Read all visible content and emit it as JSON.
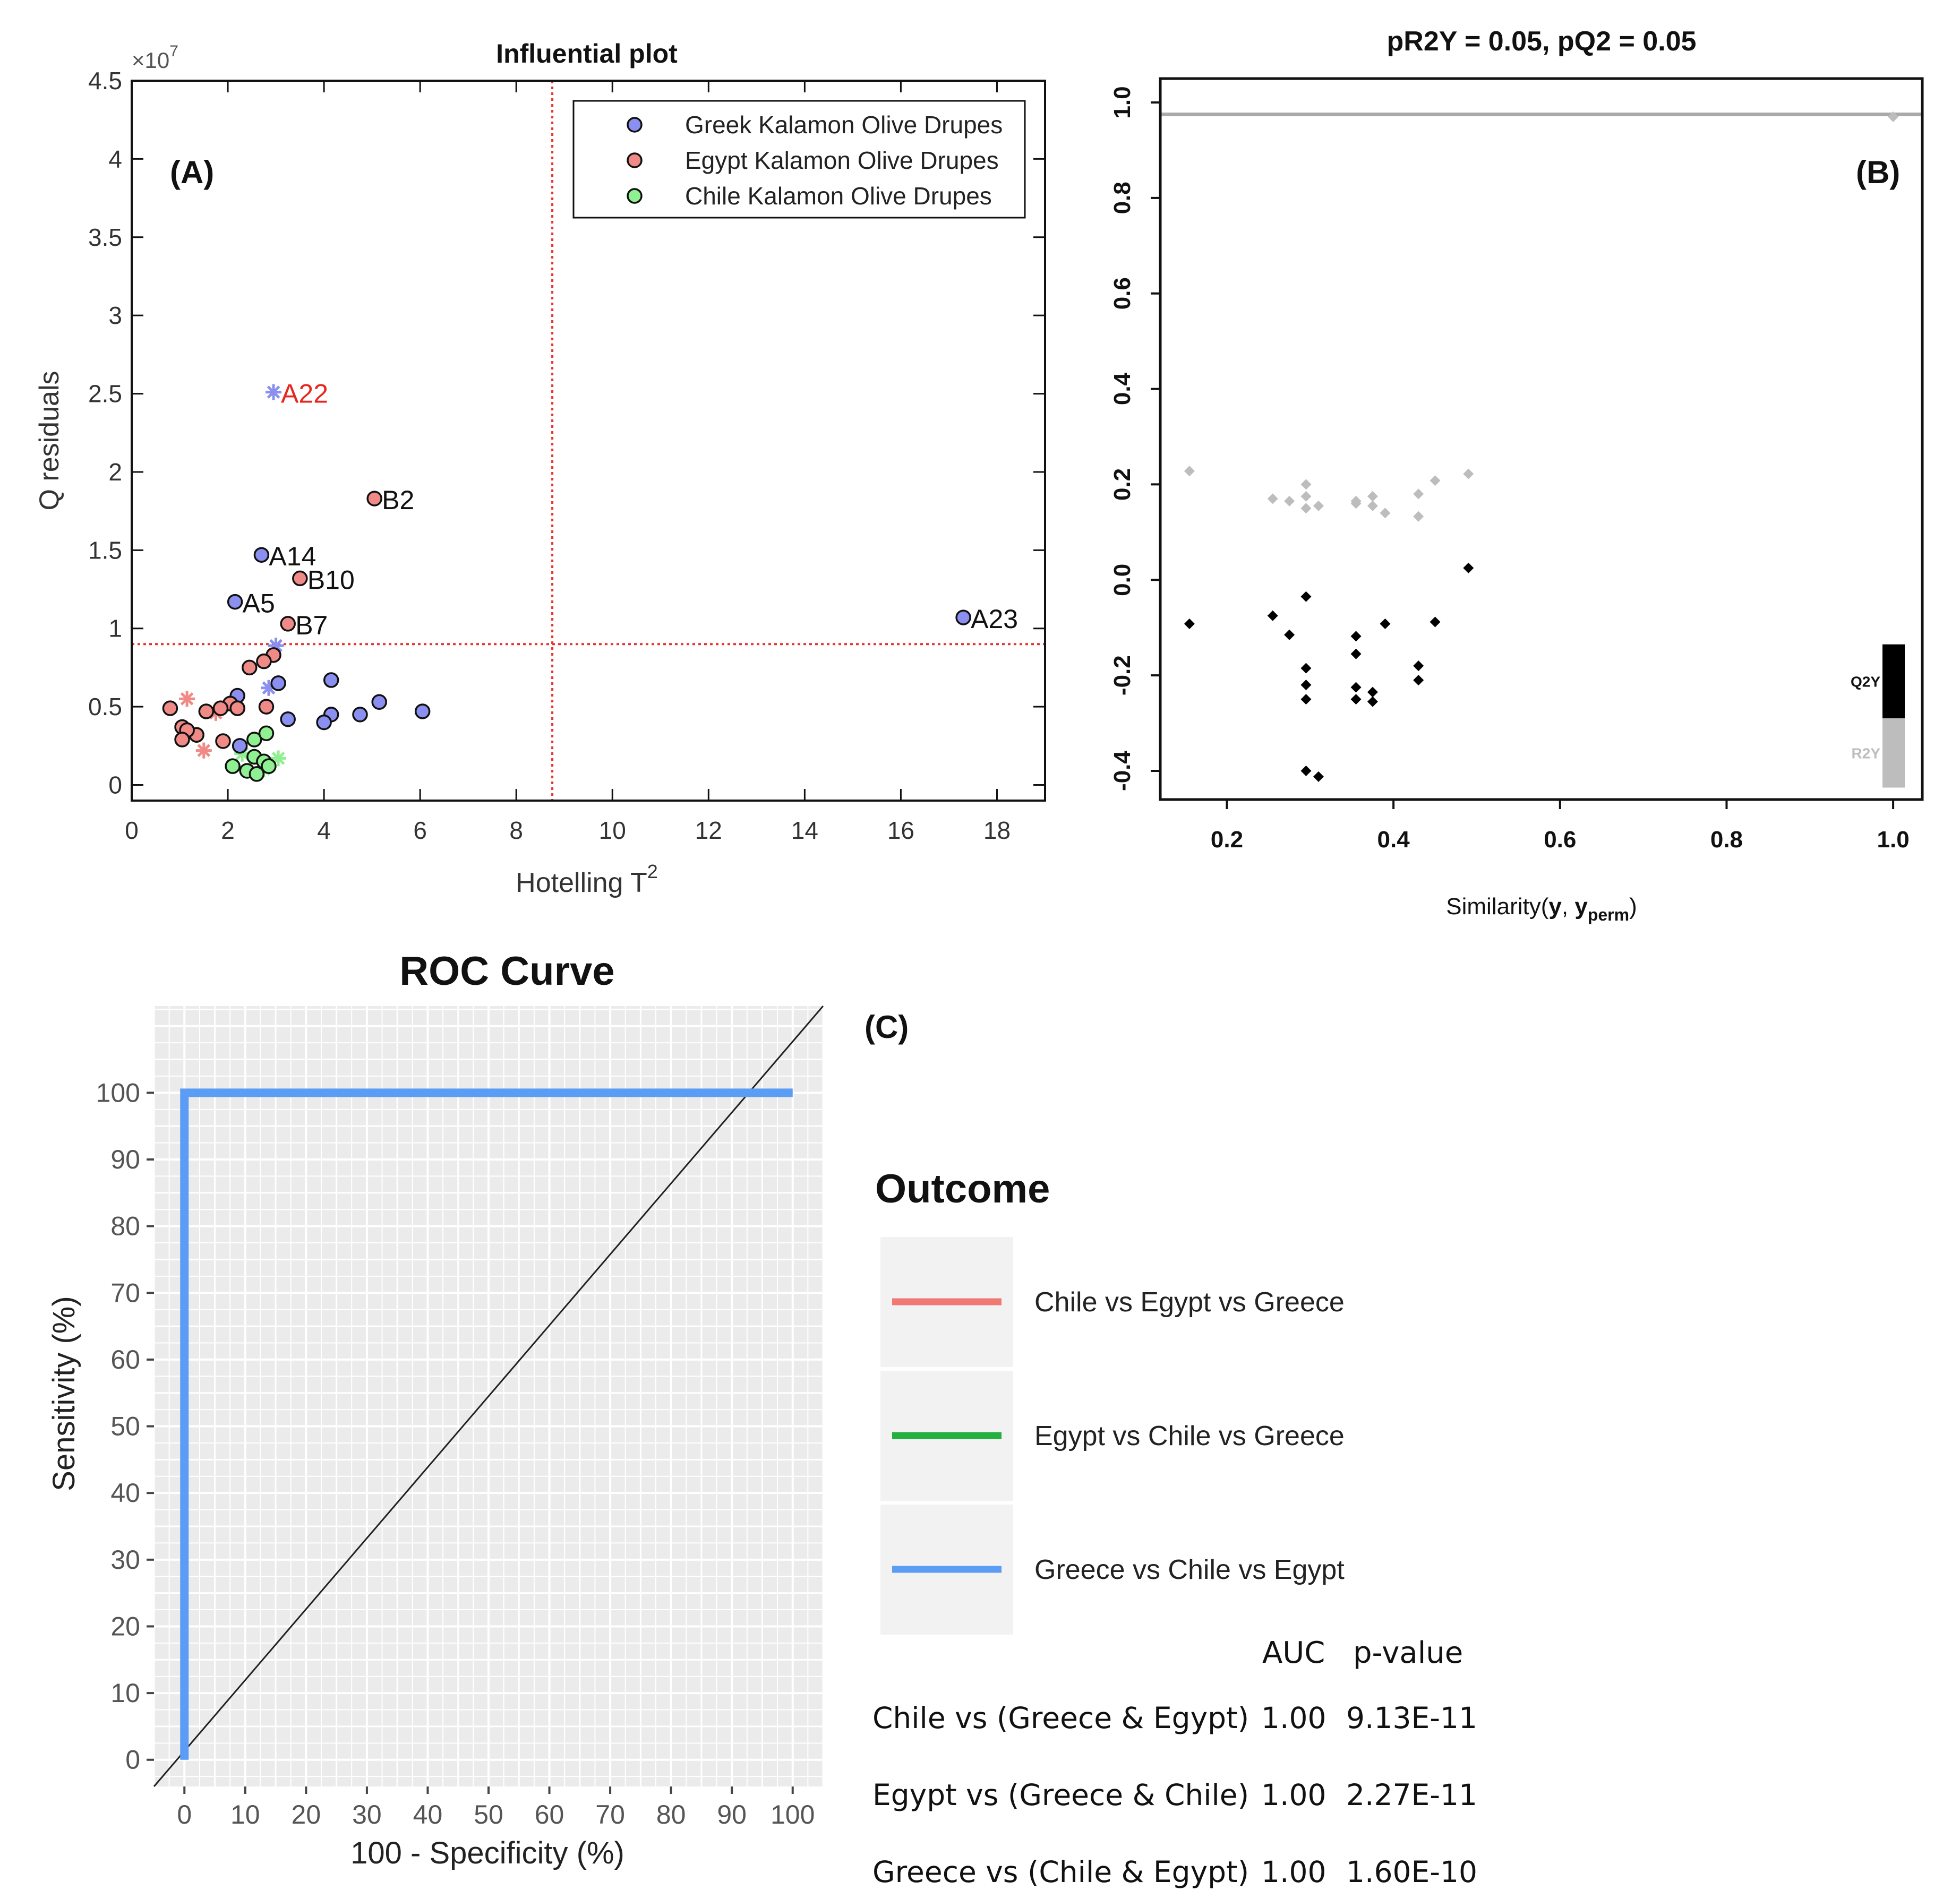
{
  "chart_data": [
    {
      "type": "scatter",
      "panel_label": "(A)",
      "title": "Influential plot",
      "xlabel": "Hotelling T",
      "xlabel_sup": "2",
      "ylabel": "Q residuals",
      "y_multiplier": "×10",
      "y_multiplier_exp": "7",
      "xlim": [
        0,
        19
      ],
      "ylim": [
        -0.1,
        4.5
      ],
      "xticks": [
        0,
        2,
        4,
        6,
        8,
        10,
        12,
        14,
        16,
        18
      ],
      "yticks": [
        0,
        0.5,
        1,
        1.5,
        2,
        2.5,
        3,
        3.5,
        4,
        4.5
      ],
      "ytick_labels": [
        "0",
        "0.5",
        "1",
        "1.5",
        "2",
        "2.5",
        "3",
        "3.5",
        "4",
        "4.5"
      ],
      "thresholds": {
        "x": 8.75,
        "y": 0.9,
        "color": "#e8322d"
      },
      "legend": [
        {
          "name": "Greek Kalamon Olive Drupes",
          "color": "#8a8ff0"
        },
        {
          "name": "Egypt Kalamon Olive Drupes",
          "color": "#f08a86"
        },
        {
          "name": "Chile Kalamon Olive Drupes",
          "color": "#8ef090"
        }
      ],
      "series": [
        {
          "name": "Greek Kalamon Olive Drupes",
          "color": "#8a8ff0",
          "points": [
            [
              2.7,
              1.47
            ],
            [
              2.15,
              1.17
            ],
            [
              17.3,
              1.07
            ],
            [
              3.05,
              0.65
            ],
            [
              4.15,
              0.67
            ],
            [
              2.2,
              0.57
            ],
            [
              5.15,
              0.53
            ],
            [
              6.05,
              0.47
            ],
            [
              4.75,
              0.45
            ],
            [
              4.15,
              0.45
            ],
            [
              4.0,
              0.4
            ],
            [
              3.25,
              0.42
            ],
            [
              2.2,
              0.49
            ],
            [
              2.25,
              0.25
            ]
          ]
        },
        {
          "name": "Egypt Kalamon Olive Drupes",
          "color": "#f08a86",
          "points": [
            [
              5.05,
              1.83
            ],
            [
              3.5,
              1.32
            ],
            [
              3.25,
              1.03
            ],
            [
              2.95,
              0.83
            ],
            [
              2.75,
              0.79
            ],
            [
              2.45,
              0.75
            ],
            [
              2.05,
              0.52
            ],
            [
              1.85,
              0.49
            ],
            [
              0.8,
              0.49
            ],
            [
              2.2,
              0.49
            ],
            [
              1.55,
              0.47
            ],
            [
              2.8,
              0.5
            ],
            [
              1.05,
              0.37
            ],
            [
              1.35,
              0.32
            ],
            [
              1.15,
              0.35
            ],
            [
              1.05,
              0.29
            ],
            [
              1.9,
              0.28
            ]
          ]
        },
        {
          "name": "Chile Kalamon Olive Drupes",
          "color": "#8ef090",
          "points": [
            [
              2.55,
              0.29
            ],
            [
              2.8,
              0.33
            ],
            [
              2.55,
              0.18
            ],
            [
              2.75,
              0.15
            ],
            [
              2.1,
              0.12
            ],
            [
              2.4,
              0.09
            ],
            [
              2.6,
              0.07
            ],
            [
              2.85,
              0.12
            ]
          ]
        }
      ],
      "star_points": [
        {
          "x": 2.95,
          "y": 2.51,
          "color": "#8a8ff0"
        },
        {
          "x": 3.0,
          "y": 0.89,
          "color": "#8a8ff0"
        },
        {
          "x": 2.85,
          "y": 0.62,
          "color": "#8a8ff0"
        },
        {
          "x": 1.15,
          "y": 0.55,
          "color": "#f08a86"
        },
        {
          "x": 1.75,
          "y": 0.46,
          "color": "#f08a86"
        },
        {
          "x": 1.5,
          "y": 0.22,
          "color": "#f08a86"
        },
        {
          "x": 3.05,
          "y": 0.17,
          "color": "#8ef090"
        },
        {
          "x": 2.75,
          "y": 0.1,
          "color": "#8ef090"
        },
        {
          "x": 2.3,
          "y": 0.2,
          "color": "#8ef090"
        }
      ],
      "point_labels": [
        {
          "text": "A22",
          "x": 2.95,
          "y": 2.51,
          "color": "#e8261f"
        },
        {
          "text": "B2",
          "x": 5.05,
          "y": 1.83,
          "color": "#111111"
        },
        {
          "text": "A14",
          "x": 2.7,
          "y": 1.47,
          "color": "#111111"
        },
        {
          "text": "B10",
          "x": 3.5,
          "y": 1.32,
          "color": "#111111"
        },
        {
          "text": "A5",
          "x": 2.15,
          "y": 1.17,
          "color": "#111111"
        },
        {
          "text": "B7",
          "x": 3.25,
          "y": 1.03,
          "color": "#111111"
        },
        {
          "text": "A23",
          "x": 17.3,
          "y": 1.07,
          "color": "#111111"
        }
      ]
    },
    {
      "type": "scatter",
      "panel_label": "(B)",
      "title": "pR2Y = 0.05, pQ2 = 0.05",
      "xlabel": "Similarity(",
      "xlabel_y": "y",
      "xlabel_comma": ", ",
      "xlabel_y2": "y",
      "xlabel_sub": "perm",
      "xlabel_close": ")",
      "xlim": [
        0.12,
        1.035
      ],
      "ylim": [
        -0.46,
        1.05
      ],
      "xticks": [
        0.2,
        0.4,
        0.6,
        0.8,
        1.0
      ],
      "xtick_labels": [
        "0.2",
        "0.4",
        "0.6",
        "0.8",
        "1.0"
      ],
      "yticks": [
        -0.4,
        -0.2,
        0.0,
        0.2,
        0.4,
        0.6,
        0.8,
        1.0
      ],
      "ytick_labels": [
        "-0.4",
        "-0.2",
        "0.0",
        "0.2",
        "0.4",
        "0.6",
        "0.8",
        "1.0"
      ],
      "reference_line": {
        "y": 0.975,
        "color": "#aaaaaa"
      },
      "series": [
        {
          "name": "R2Y",
          "color": "#bdbdbd",
          "points": [
            [
              0.155,
              0.228
            ],
            [
              0.255,
              0.17
            ],
            [
              0.275,
              0.165
            ],
            [
              0.295,
              0.2
            ],
            [
              0.295,
              0.175
            ],
            [
              0.295,
              0.15
            ],
            [
              0.31,
              0.155
            ],
            [
              0.355,
              0.165
            ],
            [
              0.355,
              0.16
            ],
            [
              0.375,
              0.175
            ],
            [
              0.375,
              0.155
            ],
            [
              0.39,
              0.14
            ],
            [
              0.43,
              0.18
            ],
            [
              0.43,
              0.133
            ],
            [
              0.45,
              0.208
            ],
            [
              0.49,
              0.222
            ],
            [
              1.0,
              0.97
            ]
          ]
        },
        {
          "name": "Q2Y",
          "color": "#000000",
          "points": [
            [
              0.155,
              -0.092
            ],
            [
              0.255,
              -0.075
            ],
            [
              0.275,
              -0.115
            ],
            [
              0.295,
              -0.035
            ],
            [
              0.295,
              -0.185
            ],
            [
              0.295,
              -0.22
            ],
            [
              0.295,
              -0.25
            ],
            [
              0.295,
              -0.4
            ],
            [
              0.31,
              -0.412
            ],
            [
              0.355,
              -0.118
            ],
            [
              0.355,
              -0.155
            ],
            [
              0.355,
              -0.225
            ],
            [
              0.355,
              -0.25
            ],
            [
              0.375,
              -0.235
            ],
            [
              0.375,
              -0.255
            ],
            [
              0.39,
              -0.092
            ],
            [
              0.43,
              -0.18
            ],
            [
              0.43,
              -0.21
            ],
            [
              0.45,
              -0.088
            ],
            [
              0.49,
              0.025
            ]
          ]
        }
      ],
      "bars": [
        {
          "name": "Q2Y",
          "from": -0.29,
          "to": -0.135,
          "color": "#000000",
          "label_color": "#111111"
        },
        {
          "name": "R2Y",
          "from": -0.435,
          "to": -0.29,
          "color": "#bdbdbd",
          "label_color": "#bdbdbd"
        }
      ]
    },
    {
      "type": "line",
      "panel_label": "(C)",
      "title": "ROC Curve",
      "xlabel": "100 - Specificity (%)",
      "ylabel": "Sensitivity (%)",
      "xlim": [
        -5,
        105
      ],
      "ylim": [
        -4,
        113
      ],
      "xticks": [
        0,
        10,
        20,
        30,
        40,
        50,
        60,
        70,
        80,
        90,
        100
      ],
      "yticks": [
        0,
        10,
        20,
        30,
        40,
        50,
        60,
        70,
        80,
        90,
        100
      ],
      "diagonal": [
        [
          -5,
          -4
        ],
        [
          105,
          113
        ]
      ],
      "series": [
        {
          "name": "Greece vs Chile vs Egypt",
          "color": "#5b9cf5",
          "x": [
            0,
            0,
            100
          ],
          "y": [
            0,
            100,
            100
          ]
        }
      ],
      "legend_title": "Outcome",
      "legend": [
        {
          "name": "Chile vs Egypt vs Greece",
          "color": "#f07a73"
        },
        {
          "name": "Egypt vs Chile vs Greece",
          "color": "#23b03e"
        },
        {
          "name": "Greece vs Chile vs Egypt",
          "color": "#5b9cf5"
        }
      ],
      "table": {
        "headers": [
          "AUC",
          "p-value"
        ],
        "rows": [
          {
            "label": "Chile vs (Greece & Egypt)",
            "auc": "1.00",
            "p": "9.13E-11"
          },
          {
            "label": "Egypt vs (Greece & Chile)",
            "auc": "1.00",
            "p": "2.27E-11"
          },
          {
            "label": "Greece vs (Chile & Egypt)",
            "auc": "1.00",
            "p": "1.60E-10"
          }
        ]
      }
    }
  ]
}
